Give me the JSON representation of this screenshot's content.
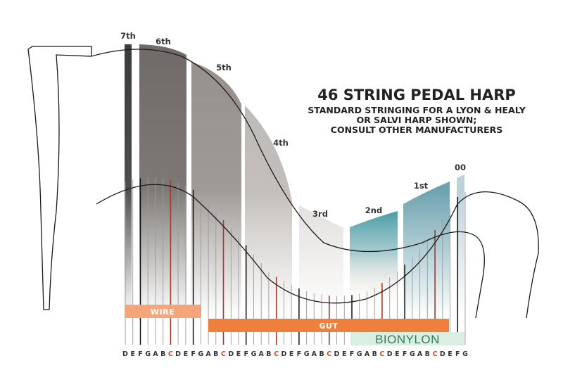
{
  "title": {
    "main": "46 STRING PEDAL HARP",
    "sub_lines": [
      "STANDARD STRINGING FOR A LYON & HEALY",
      "OR SALVI HARP SHOWN;",
      "CONSULT OTHER MANUFACTURERS"
    ]
  },
  "octaves": [
    {
      "label": "7th",
      "color": "#3a3a3a"
    },
    {
      "label": "6th",
      "color": "#6f6a67"
    },
    {
      "label": "5th",
      "color": "#958f8b"
    },
    {
      "label": "4th",
      "color": "#bcb7b4"
    },
    {
      "label": "3rd",
      "color": "#dcd8d6"
    },
    {
      "label": "2nd",
      "color": "#0c7c8a"
    },
    {
      "label": "1st",
      "color": "#5e98a7"
    },
    {
      "label": "00",
      "color": "#b5cdd6"
    }
  ],
  "bands": {
    "wire": {
      "label": "WIRE",
      "color": "#f4a67a"
    },
    "gut": {
      "label": "GUT",
      "color": "#ee7f3c"
    },
    "bionylon": {
      "label": "BIONYLON",
      "color": "#dbeee2"
    }
  },
  "notes": [
    "D",
    "E",
    "F",
    "G",
    "A",
    "B",
    "C",
    "D",
    "E",
    "F",
    "G",
    "A",
    "B",
    "C",
    "D",
    "E",
    "F",
    "G",
    "A",
    "B",
    "C",
    "D",
    "E",
    "F",
    "G",
    "A",
    "B",
    "C",
    "D",
    "E",
    "F",
    "G",
    "A",
    "B",
    "C",
    "D",
    "E",
    "F",
    "G",
    "A",
    "B",
    "C",
    "D",
    "E",
    "F",
    "G"
  ],
  "colors": {
    "c_string": "#a23a2a",
    "string": "#2a2a2a",
    "note_default": "#333333",
    "note_c": "#c8512b"
  }
}
